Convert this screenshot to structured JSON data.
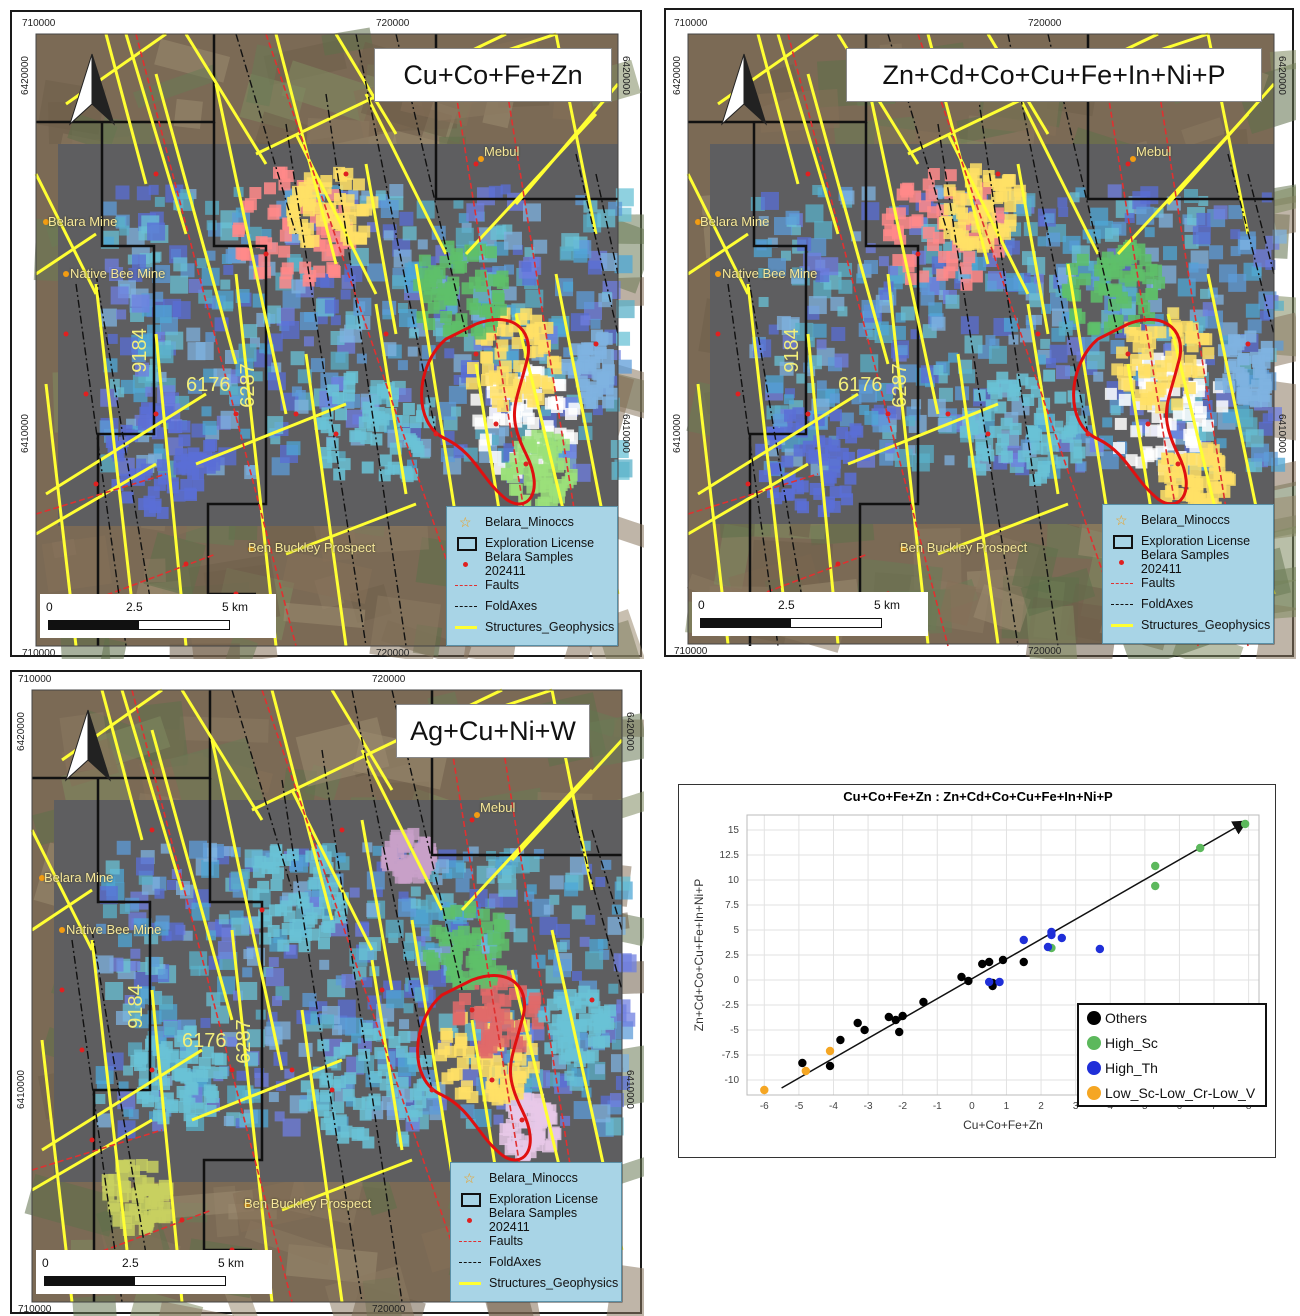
{
  "maps": [
    {
      "id": "map1",
      "title": "Cu+Co+Fe+Zn",
      "coords": {
        "top_left": "710000",
        "top_mid": "720000",
        "bottom_left": "710000",
        "bottom_mid": "720000",
        "left_top": "6420000",
        "left_mid": "6410000",
        "right_top": "6420000",
        "right_mid": "6410000"
      },
      "places": {
        "mebul": "Mebul",
        "belara": "Belara Mine",
        "native_bee": "Native Bee Mine",
        "ben_buckley": "Ben Buckley Prospect"
      },
      "line_labels": {
        "l9184": "9184",
        "l6176": "6176",
        "l6287": "6287"
      },
      "scale": {
        "zero": "0",
        "mid": "2.5",
        "end": "5 km"
      }
    },
    {
      "id": "map2",
      "title": "Zn+Cd+Co+Cu+Fe+In+Ni+P",
      "coords": {
        "top_left": "710000",
        "top_mid": "720000",
        "bottom_left": "710000",
        "bottom_mid": "720000",
        "left_top": "6420000",
        "left_mid": "6410000",
        "right_top": "6420000",
        "right_mid": "6410000"
      },
      "places": {
        "mebul": "Mebul",
        "belara": "Belara Mine",
        "native_bee": "Native Bee Mine",
        "ben_buckley": "Ben Buckley Prospect"
      },
      "line_labels": {
        "l9184": "9184",
        "l6176": "6176",
        "l6287": "6287"
      },
      "scale": {
        "zero": "0",
        "mid": "2.5",
        "end": "5 km"
      }
    },
    {
      "id": "map3",
      "title": "Ag+Cu+Ni+W",
      "coords": {
        "top_left": "710000",
        "top_mid": "720000",
        "bottom_left": "710000",
        "bottom_mid": "720000",
        "left_top": "6420000",
        "left_mid": "6410000",
        "right_top": "6420000",
        "right_mid": "6410000"
      },
      "places": {
        "mebul": "Mebul",
        "belara": "Belara Mine",
        "native_bee": "Native Bee Mine",
        "ben_buckley": "Ben Buckley Prospect"
      },
      "line_labels": {
        "l9184": "9184",
        "l6176": "6176",
        "l6287": "6287"
      },
      "scale": {
        "zero": "0",
        "mid": "2.5",
        "end": "5 km"
      }
    }
  ],
  "legend": {
    "minoccs": "Belara_Minoccs",
    "license": "Exploration License",
    "samples": "Belara Samples 202411",
    "faults": "Faults",
    "foldaxes": "FoldAxes",
    "structures": "Structures_Geophysics"
  },
  "colors": {
    "fault": "#e03030",
    "structure": "#ffff33",
    "sample": "#e02020",
    "minocc": "#f39c12",
    "highlight": "#e01010"
  },
  "chart_data": {
    "type": "scatter",
    "title": "Cu+Co+Fe+Zn : Zn+Cd+Co+Cu+Fe+In+Ni+P",
    "xlabel": "Cu+Co+Fe+Zn",
    "ylabel": "Zn+Cd+Co+Cu+Fe+In+Ni+P",
    "xlim": [
      -6.5,
      8.3
    ],
    "ylim": [
      -11.5,
      16.5
    ],
    "xticks": [
      -6,
      -5,
      -4,
      -3,
      -2,
      -1,
      0,
      1,
      2,
      3,
      4,
      5,
      6,
      7,
      8
    ],
    "yticks": [
      -10,
      -7.5,
      -5,
      -2.5,
      0,
      2.5,
      5,
      7.5,
      10,
      12.5,
      15
    ],
    "ytick_labels": [
      "-10",
      "-7.5",
      "-5",
      "-2.5",
      "0",
      "2.5",
      "5",
      "7.5",
      "10",
      "12.5",
      "15"
    ],
    "grid": true,
    "legend_position": "bottom-right",
    "trend_arrow": {
      "from": [
        -5.5,
        -10.8
      ],
      "to": [
        7.9,
        15.8
      ]
    },
    "series": [
      {
        "name": "Others",
        "color": "#000000",
        "points": [
          [
            -4.9,
            -8.3
          ],
          [
            -4.1,
            -8.6
          ],
          [
            -3.8,
            -6
          ],
          [
            -3.3,
            -4.3
          ],
          [
            -3.1,
            -5
          ],
          [
            -2.4,
            -3.7
          ],
          [
            -2.2,
            -4
          ],
          [
            -2.1,
            -5.2
          ],
          [
            -2,
            -3.6
          ],
          [
            -1.4,
            -2.2
          ],
          [
            -0.3,
            0.3
          ],
          [
            -0.1,
            -0.1
          ],
          [
            0.3,
            1.6
          ],
          [
            0.5,
            1.8
          ],
          [
            0.6,
            -0.6
          ],
          [
            0.9,
            2
          ],
          [
            1.5,
            1.8
          ],
          [
            0.6,
            -0.3
          ]
        ]
      },
      {
        "name": "High_Sc",
        "color": "#5cb85c",
        "points": [
          [
            2.3,
            3.2
          ],
          [
            5.3,
            9.4
          ],
          [
            5.3,
            11.4
          ],
          [
            6.6,
            13.2
          ],
          [
            7.9,
            15.6
          ]
        ]
      },
      {
        "name": "High_Th",
        "color": "#1f2fd8",
        "points": [
          [
            0.5,
            -0.2
          ],
          [
            0.8,
            -0.2
          ],
          [
            1.5,
            4
          ],
          [
            2.2,
            3.3
          ],
          [
            2.3,
            4.5
          ],
          [
            2.3,
            4.8
          ],
          [
            2.6,
            4.2
          ],
          [
            3.7,
            3.1
          ]
        ]
      },
      {
        "name": "Low_Sc-Low_Cr-Low_V",
        "color": "#f5a623",
        "points": [
          [
            -6,
            -11
          ],
          [
            -4.8,
            -9.1
          ],
          [
            -4.1,
            -7.1
          ]
        ]
      }
    ]
  }
}
